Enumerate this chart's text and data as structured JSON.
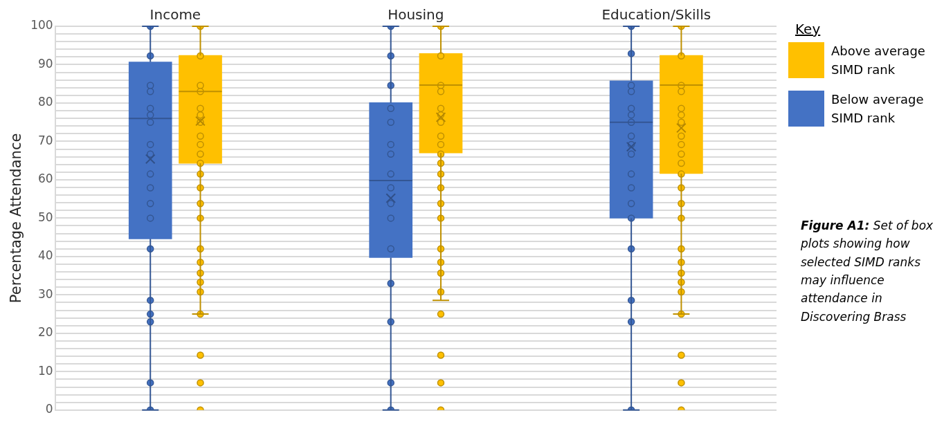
{
  "chart_data": {
    "type": "box",
    "ylabel": "Percentage Attendance",
    "categories": [
      "Income",
      "Housing",
      "Education/Skills"
    ],
    "ylim": [
      0,
      100
    ],
    "yticks": [
      0,
      {
        "value": 2,
        "label": null
      },
      {
        "value": 4,
        "label": null
      },
      {
        "value": 6,
        "label": null
      },
      {
        "value": 8,
        "label": null
      },
      10,
      {
        "value": 12,
        "label": null
      },
      {
        "value": 14,
        "label": null
      },
      {
        "value": 16,
        "label": null
      },
      {
        "value": 18,
        "label": null
      },
      20,
      {
        "value": 22,
        "label": null
      },
      {
        "value": 24,
        "label": null
      },
      {
        "value": 26,
        "label": null
      },
      {
        "value": 28,
        "label": null
      },
      30,
      {
        "value": 32,
        "label": null
      },
      {
        "value": 34,
        "label": null
      },
      {
        "value": 36,
        "label": null
      },
      {
        "value": 38,
        "label": null
      },
      40,
      {
        "value": 42,
        "label": null
      },
      {
        "value": 44,
        "label": null
      },
      {
        "value": 46,
        "label": null
      },
      {
        "value": 48,
        "label": null
      },
      50,
      {
        "value": 52,
        "label": null
      },
      {
        "value": 54,
        "label": null
      },
      {
        "value": 56,
        "label": null
      },
      {
        "value": 58,
        "label": null
      },
      60,
      {
        "value": 62,
        "label": null
      },
      {
        "value": 64,
        "label": null
      },
      {
        "value": 66,
        "label": null
      },
      {
        "value": 68,
        "label": null
      },
      70,
      {
        "value": 72,
        "label": null
      },
      {
        "value": 74,
        "label": null
      },
      {
        "value": 76,
        "label": null
      },
      {
        "value": 78,
        "label": null
      },
      80,
      {
        "value": 82,
        "label": null
      },
      {
        "value": 84,
        "label": null
      },
      {
        "value": 86,
        "label": null
      },
      {
        "value": 88,
        "label": null
      },
      90,
      {
        "value": 92,
        "label": null
      },
      {
        "value": 94,
        "label": null
      },
      {
        "value": 96,
        "label": null
      },
      {
        "value": 98,
        "label": null
      },
      100
    ],
    "grid": "y",
    "marker": "circle",
    "legend": "right",
    "legend_title": "Key",
    "annotations": [
      "Figure A1: Set of box plots showing how selected SIMD ranks may influence attendance in Discovering Brass"
    ],
    "series": [
      {
        "name": "Below average SIMD rank",
        "color": "#4472c4",
        "boxes": [
          {
            "low": 0,
            "q1": 44.6,
            "median": 76,
            "q3": 90.7,
            "high": 100,
            "mean": 65.4
          },
          {
            "low": 0,
            "q1": 39.7,
            "median": 59.8,
            "q3": 80.1,
            "high": 100,
            "mean": 55.2
          },
          {
            "low": 0,
            "q1": 50,
            "median": 75,
            "q3": 85.8,
            "high": 100,
            "mean": 68.6
          }
        ]
      },
      {
        "name": "Above average SIMD rank",
        "color": "#ffc000",
        "boxes": [
          {
            "low": 25,
            "q1": 64.3,
            "median": 83,
            "q3": 92.4,
            "high": 100,
            "mean": 75.3
          },
          {
            "low": 28.6,
            "q1": 67,
            "median": 84.7,
            "q3": 92.9,
            "high": 100,
            "mean": 76.3
          },
          {
            "low": 25,
            "q1": 61.6,
            "median": 84.7,
            "q3": 92.4,
            "high": 100,
            "mean": 73.5
          }
        ]
      },
      {
        "type": "scatter",
        "color": "#4472c4",
        "x": [
          "Income",
          "Income",
          "Income",
          "Income",
          "Income",
          "Income",
          "Income",
          "Income",
          "Income",
          "Income",
          "Income",
          "Income",
          "Income",
          "Income",
          "Income",
          "Income",
          "Income",
          "Income",
          "Income",
          "Housing",
          "Housing",
          "Housing",
          "Housing",
          "Housing",
          "Housing",
          "Housing",
          "Housing",
          "Housing",
          "Housing",
          "Housing",
          "Housing",
          "Housing",
          "Housing",
          "Housing",
          "Housing",
          "Education/Skills",
          "Education/Skills",
          "Education/Skills",
          "Education/Skills",
          "Education/Skills",
          "Education/Skills",
          "Education/Skills",
          "Education/Skills",
          "Education/Skills",
          "Education/Skills",
          "Education/Skills",
          "Education/Skills",
          "Education/Skills",
          "Education/Skills",
          "Education/Skills",
          "Education/Skills",
          "Education/Skills",
          "Education/Skills"
        ],
        "values": [
          100,
          92.3,
          84.6,
          83,
          78.6,
          76.9,
          75,
          69.2,
          66.7,
          61.5,
          57.9,
          53.8,
          50,
          42,
          28.6,
          25,
          23,
          7.1,
          0,
          100,
          92.3,
          84.6,
          78.6,
          75,
          69.2,
          66.7,
          61.5,
          57.9,
          53.8,
          50,
          42,
          33,
          23,
          7.1,
          0,
          100,
          92.9,
          84.6,
          83,
          78.6,
          76.9,
          75,
          71.4,
          69.2,
          66.7,
          61.5,
          57.9,
          53.8,
          50,
          42,
          28.6,
          23,
          0
        ]
      },
      {
        "type": "scatter",
        "color": "#ffc000",
        "x": [
          "Income",
          "Income",
          "Income",
          "Income",
          "Income",
          "Income",
          "Income",
          "Income",
          "Income",
          "Income",
          "Income",
          "Income",
          "Income",
          "Income",
          "Income",
          "Income",
          "Income",
          "Income",
          "Income",
          "Income",
          "Income",
          "Income",
          "Income",
          "Income",
          "Housing",
          "Housing",
          "Housing",
          "Housing",
          "Housing",
          "Housing",
          "Housing",
          "Housing",
          "Housing",
          "Housing",
          "Housing",
          "Housing",
          "Housing",
          "Housing",
          "Housing",
          "Housing",
          "Housing",
          "Housing",
          "Housing",
          "Housing",
          "Housing",
          "Housing",
          "Housing",
          "Education/Skills",
          "Education/Skills",
          "Education/Skills",
          "Education/Skills",
          "Education/Skills",
          "Education/Skills",
          "Education/Skills",
          "Education/Skills",
          "Education/Skills",
          "Education/Skills",
          "Education/Skills",
          "Education/Skills",
          "Education/Skills",
          "Education/Skills",
          "Education/Skills",
          "Education/Skills",
          "Education/Skills",
          "Education/Skills",
          "Education/Skills",
          "Education/Skills",
          "Education/Skills",
          "Education/Skills",
          "Education/Skills",
          "Education/Skills"
        ],
        "values": [
          100,
          92.3,
          84.6,
          83,
          78.6,
          76.9,
          75,
          71.4,
          69.2,
          66.7,
          64.3,
          61.5,
          57.9,
          53.8,
          50,
          42,
          38.5,
          35.7,
          33.3,
          30.8,
          25,
          14.3,
          7.1,
          0,
          100,
          92.3,
          84.6,
          83,
          78.6,
          76.9,
          75,
          71.4,
          69.2,
          66.7,
          64.3,
          61.5,
          57.9,
          53.8,
          50,
          42,
          38.5,
          35.7,
          30.8,
          25,
          14.3,
          7.1,
          0,
          100,
          92.3,
          84.6,
          83,
          78.6,
          76.9,
          75,
          71.4,
          69.2,
          66.7,
          64.3,
          61.5,
          57.9,
          53.8,
          50,
          42,
          38.5,
          35.7,
          33.3,
          30.8,
          25,
          14.3,
          7.1,
          0
        ]
      }
    ]
  }
}
